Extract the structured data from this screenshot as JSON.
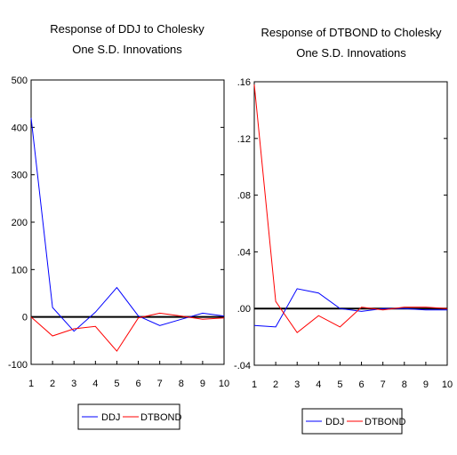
{
  "chart_data": [
    {
      "type": "line",
      "title": "Response of DDJ to Cholesky",
      "subtitle": "One S.D. Innovations",
      "x": [
        1,
        2,
        3,
        4,
        5,
        6,
        7,
        8,
        9,
        10
      ],
      "xlim": [
        1,
        10
      ],
      "ylim": [
        -100,
        500
      ],
      "yticks": [
        -100,
        0,
        100,
        200,
        300,
        400,
        500
      ],
      "ytick_labels": [
        "-100",
        "0",
        "100",
        "200",
        "300",
        "400",
        "500"
      ],
      "xtick_labels": [
        "1",
        "2",
        "3",
        "4",
        "5",
        "6",
        "7",
        "8",
        "9",
        "10"
      ],
      "grid": false,
      "legend_position": "bottom",
      "series": [
        {
          "name": "DDJ",
          "color": "#0000ff",
          "values": [
            420,
            20,
            -30,
            10,
            62,
            2,
            -18,
            -5,
            8,
            2
          ]
        },
        {
          "name": "DTBOND",
          "color": "#ff0000",
          "values": [
            0,
            -40,
            -25,
            -20,
            -72,
            -2,
            8,
            2,
            -5,
            -2
          ]
        }
      ]
    },
    {
      "type": "line",
      "title": "Response of DTBOND to Cholesky",
      "subtitle": "One S.D. Innovations",
      "x": [
        1,
        2,
        3,
        4,
        5,
        6,
        7,
        8,
        9,
        10
      ],
      "xlim": [
        1,
        10
      ],
      "ylim": [
        -0.04,
        0.16
      ],
      "yticks": [
        -0.04,
        0.0,
        0.04,
        0.08,
        0.12,
        0.16
      ],
      "ytick_labels": [
        "-.04",
        ".00",
        ".04",
        ".08",
        ".12",
        ".16"
      ],
      "xtick_labels": [
        "1",
        "2",
        "3",
        "4",
        "5",
        "6",
        "7",
        "8",
        "9",
        "10"
      ],
      "grid": false,
      "legend_position": "bottom",
      "series": [
        {
          "name": "DDJ",
          "color": "#0000ff",
          "values": [
            -0.012,
            -0.013,
            0.014,
            0.011,
            0.0,
            -0.002,
            0.0,
            0.0,
            -0.001,
            -0.001
          ]
        },
        {
          "name": "DTBOND",
          "color": "#ff0000",
          "values": [
            0.158,
            0.005,
            -0.017,
            -0.005,
            -0.013,
            0.001,
            -0.001,
            0.001,
            0.001,
            0.0
          ]
        }
      ]
    }
  ]
}
